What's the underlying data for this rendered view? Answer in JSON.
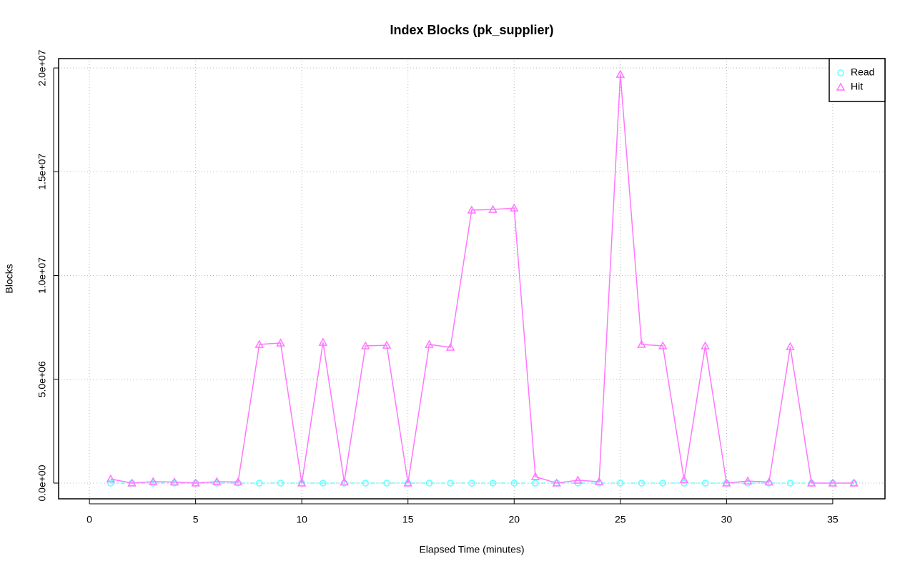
{
  "chart_data": {
    "type": "line",
    "title": "Index Blocks (pk_supplier)",
    "x_label": "Elapsed Time (minutes)",
    "y_label": "Blocks",
    "x": [
      1,
      2,
      3,
      4,
      5,
      6,
      7,
      8,
      9,
      10,
      11,
      12,
      13,
      14,
      15,
      16,
      17,
      18,
      19,
      20,
      21,
      22,
      23,
      24,
      25,
      26,
      27,
      28,
      29,
      30,
      31,
      32,
      33,
      34,
      35,
      36
    ],
    "series": [
      {
        "name": "Read",
        "color": "#66ffff",
        "marker": "circle",
        "dash": "6 3 2 3",
        "values": [
          0,
          0,
          0,
          0,
          0,
          0,
          0,
          0,
          0,
          0,
          0,
          0,
          0,
          0,
          0,
          0,
          0,
          0,
          0,
          0,
          0,
          0,
          0,
          0,
          0,
          0,
          0,
          0,
          0,
          0,
          0,
          0,
          0,
          0,
          0,
          0
        ]
      },
      {
        "name": "Hit",
        "color": "#ff77ff",
        "marker": "triangle",
        "dash": "none",
        "values": [
          200000,
          0,
          70000,
          50000,
          0,
          70000,
          50000,
          6680000,
          6750000,
          0,
          6780000,
          50000,
          6610000,
          6640000,
          0,
          6680000,
          6540000,
          13150000,
          13180000,
          13250000,
          310000,
          0,
          140000,
          70000,
          19690000,
          6680000,
          6610000,
          170000,
          6610000,
          0,
          100000,
          50000,
          6570000,
          0,
          0,
          0
        ]
      }
    ],
    "xlim": [
      -1.45,
      37.46
    ],
    "ylim": [
      -757000,
      20450000
    ],
    "xticks": [
      0,
      5,
      10,
      15,
      20,
      25,
      30,
      35
    ],
    "yticks": [
      {
        "value": 0,
        "label": "0.0e+00"
      },
      {
        "value": 5000000,
        "label": "5.0e+06"
      },
      {
        "value": 10000000,
        "label": "1.0e+07"
      },
      {
        "value": 15000000,
        "label": "1.5e+07"
      },
      {
        "value": 20000000,
        "label": "2.0e+07"
      }
    ],
    "grid": true,
    "legend": "top-right"
  }
}
